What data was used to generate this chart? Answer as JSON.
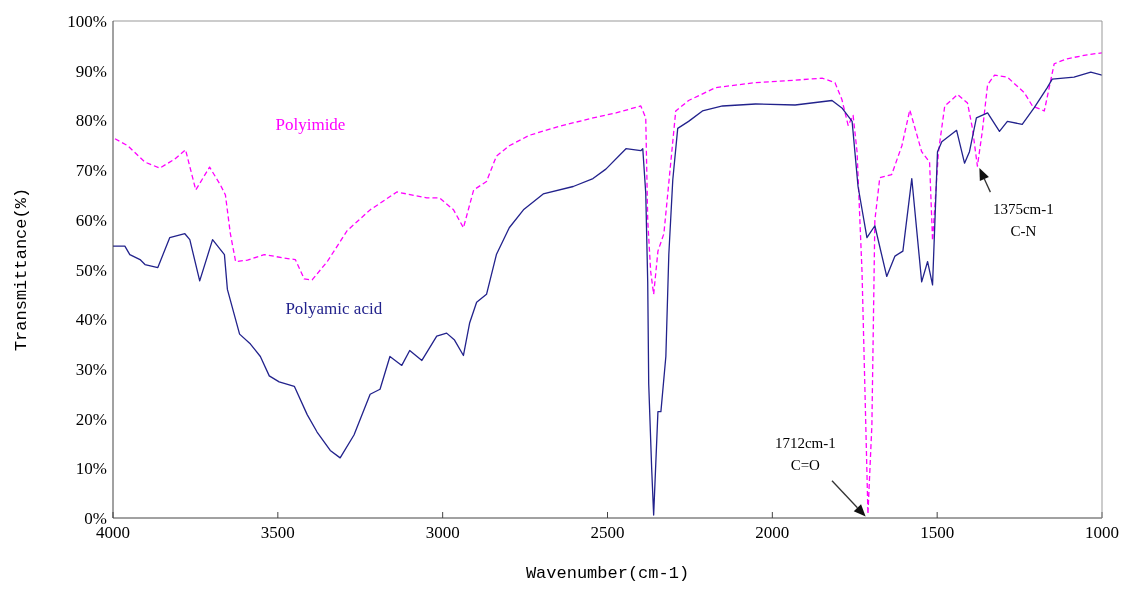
{
  "chart_data": {
    "type": "line",
    "xlabel": "Wavenumber(cm-1)",
    "ylabel": "Transmittance(%)",
    "xlim": [
      4000,
      1000
    ],
    "xticks": [
      4000,
      3500,
      3000,
      2500,
      2000,
      1500,
      1000
    ],
    "ylim": [
      0,
      100
    ],
    "yticks": [
      {
        "value": 0,
        "label": "0%"
      },
      {
        "value": 10,
        "label": "10%"
      },
      {
        "value": 20,
        "label": "20%"
      },
      {
        "value": 30,
        "label": "30%"
      },
      {
        "value": 40,
        "label": "40%"
      },
      {
        "value": 50,
        "label": "50%"
      },
      {
        "value": 60,
        "label": "60%"
      },
      {
        "value": 70,
        "label": "70%"
      },
      {
        "value": 80,
        "label": "80%"
      },
      {
        "value": 90,
        "label": "90%"
      },
      {
        "value": 100,
        "label": "100%"
      }
    ],
    "grid": false,
    "legend": false,
    "marker": "none",
    "series": [
      {
        "name": "Polyimide",
        "color": "#ff00ff",
        "line_style": "dashed",
        "x": [
          3994,
          3955,
          3903,
          3858,
          3813,
          3780,
          3749,
          3707,
          3674,
          3659,
          3644,
          3628,
          3592,
          3541,
          3480,
          3447,
          3420,
          3396,
          3350,
          3290,
          3220,
          3139,
          3048,
          3009,
          2967,
          2937,
          2906,
          2867,
          2837,
          2798,
          2737,
          2647,
          2544,
          2474,
          2399,
          2384,
          2378,
          2369,
          2360,
          2347,
          2329,
          2317,
          2293,
          2254,
          2172,
          2051,
          1931,
          1849,
          1810,
          1789,
          1770,
          1755,
          1743,
          1728,
          1719,
          1710,
          1698,
          1689,
          1674,
          1638,
          1607,
          1583,
          1547,
          1523,
          1514,
          1496,
          1477,
          1438,
          1408,
          1393,
          1378,
          1363,
          1347,
          1326,
          1287,
          1236,
          1211,
          1175,
          1145,
          1106,
          1045,
          1000
        ],
        "values": [
          76.3,
          74.9,
          71.6,
          70.4,
          72.2,
          74.1,
          66,
          70.6,
          67,
          65,
          57.2,
          51.6,
          51.9,
          53,
          52.3,
          52,
          48.1,
          47.9,
          51.6,
          57.8,
          62,
          65.6,
          64.4,
          64.4,
          62,
          58.4,
          66,
          67.7,
          72.8,
          74.9,
          77,
          78.8,
          80.5,
          81.5,
          82.9,
          80.5,
          59.9,
          49.6,
          45,
          53.7,
          57.2,
          65.4,
          81.9,
          84,
          86.6,
          87.6,
          88.1,
          88.5,
          87.6,
          84.2,
          79,
          81,
          73.7,
          49.6,
          25.5,
          0.8,
          18.7,
          59.9,
          68.5,
          69.1,
          74.9,
          82.1,
          73.7,
          71.6,
          55.8,
          73.7,
          82.9,
          85.2,
          83.5,
          78.4,
          70.8,
          77.8,
          87.2,
          89.1,
          88.7,
          85.6,
          82.9,
          81.9,
          91.4,
          92.4,
          93.2,
          93.6
        ]
      },
      {
        "name": "Polyamic acid",
        "color": "#22228c",
        "line_style": "solid",
        "x": [
          4000,
          3964,
          3949,
          3918,
          3903,
          3864,
          3828,
          3782,
          3767,
          3737,
          3698,
          3662,
          3653,
          3616,
          3583,
          3553,
          3526,
          3496,
          3450,
          3411,
          3381,
          3341,
          3311,
          3269,
          3220,
          3190,
          3160,
          3124,
          3100,
          3063,
          3018,
          2988,
          2964,
          2937,
          2918,
          2897,
          2867,
          2837,
          2798,
          2755,
          2695,
          2604,
          2544,
          2505,
          2444,
          2399,
          2393,
          2384,
          2378,
          2375,
          2366,
          2360,
          2347,
          2338,
          2323,
          2314,
          2302,
          2287,
          2254,
          2212,
          2151,
          2051,
          1931,
          1819,
          1789,
          1758,
          1740,
          1713,
          1689,
          1653,
          1628,
          1604,
          1577,
          1547,
          1529,
          1514,
          1499,
          1486,
          1441,
          1417,
          1402,
          1381,
          1347,
          1311,
          1287,
          1242,
          1206,
          1166,
          1151,
          1085,
          1034,
          1000
        ],
        "values": [
          54.7,
          54.7,
          53,
          52,
          51,
          50.4,
          56.4,
          57.2,
          56,
          47.7,
          56,
          53,
          46,
          37,
          35,
          32.5,
          28.6,
          27.4,
          26.5,
          20.8,
          17.3,
          13.6,
          12.1,
          16.7,
          24.9,
          25.9,
          32.5,
          30.7,
          33.7,
          31.7,
          36.6,
          37.2,
          35.8,
          32.7,
          39.3,
          43.4,
          45,
          53,
          58.4,
          62,
          65.2,
          66.7,
          68.3,
          70.2,
          74.3,
          73.9,
          74.3,
          65.4,
          47.5,
          27,
          9.9,
          0.6,
          21.4,
          21.4,
          32.5,
          53,
          68,
          78.4,
          79.8,
          81.9,
          82.9,
          83.3,
          83.1,
          84,
          82.5,
          79.8,
          66.7,
          56.4,
          58.8,
          48.6,
          52.7,
          53.7,
          68.3,
          47.5,
          51.6,
          46.9,
          73.7,
          75.7,
          78,
          71.4,
          73.7,
          80.5,
          81.5,
          77.8,
          79.8,
          79.2,
          82.5,
          86.6,
          88.3,
          88.7,
          89.7,
          89.1
        ]
      }
    ],
    "annotations": [
      "1712cm-1\nC=O",
      {
        "text": "1375cm-1\nC-N",
        "x": 1375,
        "y": 70.8
      }
    ]
  }
}
